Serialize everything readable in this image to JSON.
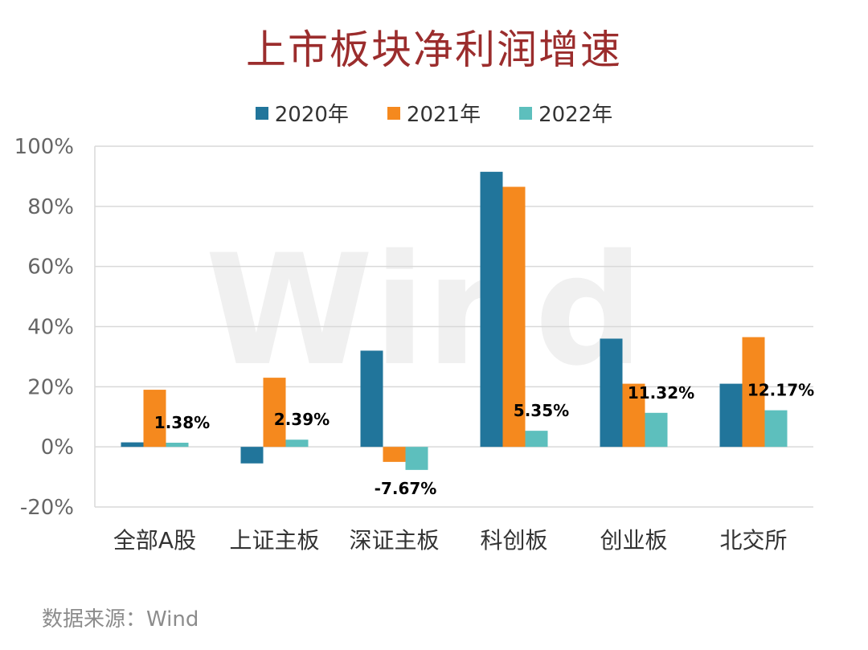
{
  "title": "上市板块净利润增速",
  "source": "数据来源：Wind",
  "watermark": "Wind",
  "colors": {
    "title": "#9b2d2d",
    "series_2020": "#21759b",
    "series_2021": "#f5891e",
    "series_2022": "#5dbfbd",
    "grid": "#d9d9d9"
  },
  "chart_data": {
    "type": "bar",
    "categories": [
      "全部A股",
      "上证主板",
      "深证主板",
      "科创板",
      "创业板",
      "北交所"
    ],
    "series": [
      {
        "name": "2020年",
        "values": [
          1.5,
          -5.5,
          32,
          91.5,
          36,
          21
        ]
      },
      {
        "name": "2021年",
        "values": [
          19,
          23,
          -5,
          86.5,
          21,
          36.5
        ]
      },
      {
        "name": "2022年",
        "values": [
          1.38,
          2.39,
          -7.67,
          5.35,
          11.32,
          12.17
        ]
      }
    ],
    "data_labels": [
      "1.38%",
      "2.39%",
      "-7.67%",
      "5.35%",
      "11.32%",
      "12.17%"
    ],
    "y_ticks": [
      "100%",
      "80%",
      "60%",
      "40%",
      "20%",
      "0%",
      "-20%"
    ],
    "ylim": [
      -20,
      100
    ],
    "legend_position": "top",
    "grid": true
  }
}
